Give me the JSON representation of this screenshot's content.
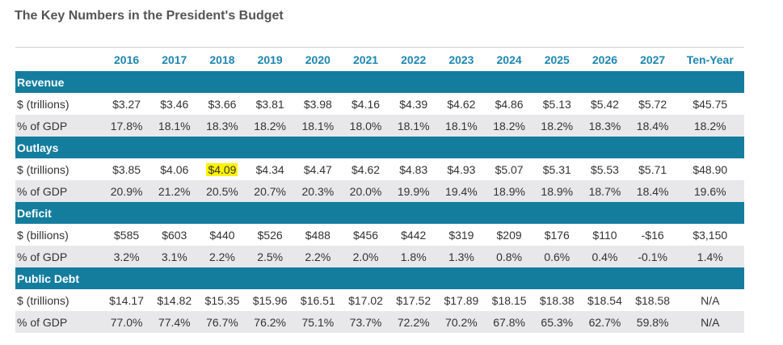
{
  "title": "The Key Numbers in the President's Budget",
  "columns": [
    "2016",
    "2017",
    "2018",
    "2019",
    "2020",
    "2021",
    "2022",
    "2023",
    "2024",
    "2025",
    "2026",
    "2027",
    "Ten-Year"
  ],
  "sections": [
    {
      "name": "Revenue",
      "rows": [
        {
          "label": "$ (trillions)",
          "values": [
            "$3.27",
            "$3.46",
            "$3.66",
            "$3.81",
            "$3.98",
            "$4.16",
            "$4.39",
            "$4.62",
            "$4.86",
            "$5.13",
            "$5.42",
            "$5.72",
            "$45.75"
          ]
        },
        {
          "label": "% of GDP",
          "values": [
            "17.8%",
            "18.1%",
            "18.3%",
            "18.2%",
            "18.1%",
            "18.0%",
            "18.1%",
            "18.1%",
            "18.2%",
            "18.2%",
            "18.3%",
            "18.4%",
            "18.2%"
          ]
        }
      ]
    },
    {
      "name": "Outlays",
      "rows": [
        {
          "label": "$ (trillions)",
          "values": [
            "$3.85",
            "$4.06",
            "$4.09",
            "$4.34",
            "$4.47",
            "$4.62",
            "$4.83",
            "$4.93",
            "$5.07",
            "$5.31",
            "$5.53",
            "$5.71",
            "$48.90"
          ]
        },
        {
          "label": "% of GDP",
          "values": [
            "20.9%",
            "21.2%",
            "20.5%",
            "20.7%",
            "20.3%",
            "20.0%",
            "19.9%",
            "19.4%",
            "18.9%",
            "18.9%",
            "18.7%",
            "18.4%",
            "19.6%"
          ]
        }
      ]
    },
    {
      "name": "Deficit",
      "rows": [
        {
          "label": "$ (billions)",
          "values": [
            "$585",
            "$603",
            "$440",
            "$526",
            "$488",
            "$456",
            "$442",
            "$319",
            "$209",
            "$176",
            "$110",
            "-$16",
            "$3,150"
          ]
        },
        {
          "label": "% of GDP",
          "values": [
            "3.2%",
            "3.1%",
            "2.2%",
            "2.5%",
            "2.2%",
            "2.0%",
            "1.8%",
            "1.3%",
            "0.8%",
            "0.6%",
            "0.4%",
            "-0.1%",
            "1.4%"
          ]
        }
      ]
    },
    {
      "name": "Public Debt",
      "rows": [
        {
          "label": "$ (trillions)",
          "values": [
            "$14.17",
            "$14.82",
            "$15.35",
            "$15.96",
            "$16.51",
            "$17.02",
            "$17.52",
            "$17.89",
            "$18.15",
            "$18.38",
            "$18.54",
            "$18.58",
            "N/A"
          ]
        },
        {
          "label": "% of GDP",
          "values": [
            "77.0%",
            "77.4%",
            "76.7%",
            "76.2%",
            "75.1%",
            "73.7%",
            "72.2%",
            "70.2%",
            "67.8%",
            "65.3%",
            "62.7%",
            "59.8%",
            "N/A"
          ]
        }
      ]
    }
  ],
  "highlight": {
    "section": 1,
    "row": 0,
    "col": 2,
    "color": "#fff200"
  }
}
